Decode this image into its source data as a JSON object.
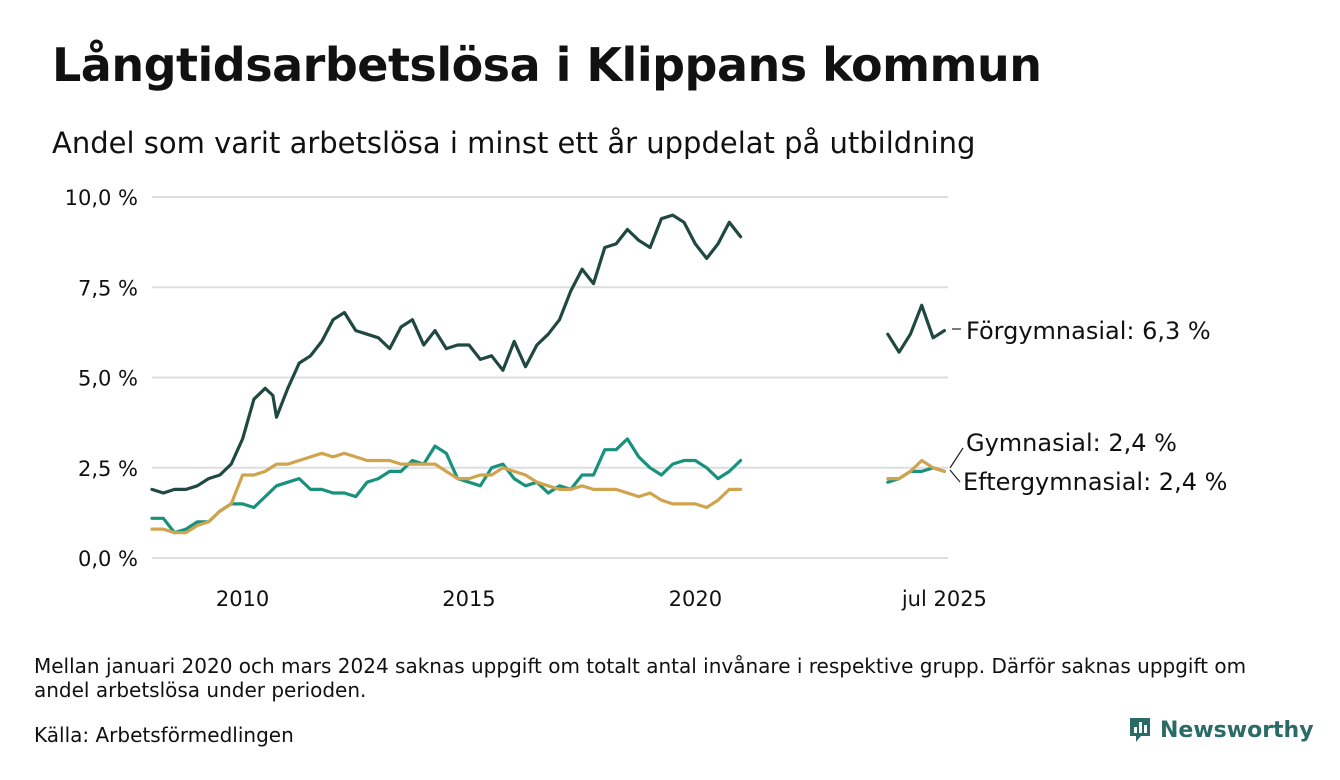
{
  "title": "Långtidsarbetslösa i Klippans kommun",
  "subtitle": "Andel som varit arbetslösa i minst ett år uppdelat på utbildning",
  "footnote": "Mellan januari 2020 och mars 2024 saknas uppgift om totalt antal invånare i respektive grupp. Därför saknas uppgift om andel arbetslösa under perioden.",
  "source": "Källa: Arbetsförmedlingen",
  "brand": {
    "name": "Newsworthy",
    "icon": "bar-chart-icon"
  },
  "chart_data": {
    "type": "line",
    "xlim": [
      2008.0,
      2025.58
    ],
    "ylim": [
      0,
      10
    ],
    "grid": true,
    "y_ticks": [
      {
        "value": 0,
        "label": "0,0 %"
      },
      {
        "value": 2.5,
        "label": "2,5 %"
      },
      {
        "value": 5,
        "label": "5,0 %"
      },
      {
        "value": 7.5,
        "label": "7,5 %"
      },
      {
        "value": 10,
        "label": "10,0 %"
      }
    ],
    "x_ticks": [
      {
        "value": 2010.0,
        "label": "2010"
      },
      {
        "value": 2015.0,
        "label": "2015"
      },
      {
        "value": 2020.0,
        "label": "2020"
      },
      {
        "value": 2025.5,
        "label": "jul 2025"
      }
    ],
    "series": [
      {
        "name": "Förgymnasial",
        "end_label": "Förgymnasial: 6,3 %",
        "color": "#1f4840",
        "segments": [
          [
            [
              2008.0,
              1.9
            ],
            [
              2008.25,
              1.8
            ],
            [
              2008.5,
              1.9
            ],
            [
              2008.75,
              1.9
            ],
            [
              2009.0,
              2.0
            ],
            [
              2009.25,
              2.2
            ],
            [
              2009.5,
              2.3
            ],
            [
              2009.75,
              2.6
            ],
            [
              2010.0,
              3.3
            ],
            [
              2010.25,
              4.4
            ],
            [
              2010.5,
              4.7
            ],
            [
              2010.67,
              4.5
            ],
            [
              2010.75,
              3.9
            ],
            [
              2011.0,
              4.7
            ],
            [
              2011.25,
              5.4
            ],
            [
              2011.5,
              5.6
            ],
            [
              2011.75,
              6.0
            ],
            [
              2012.0,
              6.6
            ],
            [
              2012.25,
              6.8
            ],
            [
              2012.5,
              6.3
            ],
            [
              2012.75,
              6.2
            ],
            [
              2013.0,
              6.1
            ],
            [
              2013.25,
              5.8
            ],
            [
              2013.5,
              6.4
            ],
            [
              2013.75,
              6.6
            ],
            [
              2014.0,
              5.9
            ],
            [
              2014.25,
              6.3
            ],
            [
              2014.5,
              5.8
            ],
            [
              2014.75,
              5.9
            ],
            [
              2015.0,
              5.9
            ],
            [
              2015.25,
              5.5
            ],
            [
              2015.5,
              5.6
            ],
            [
              2015.75,
              5.2
            ],
            [
              2016.0,
              6.0
            ],
            [
              2016.25,
              5.3
            ],
            [
              2016.5,
              5.9
            ],
            [
              2016.75,
              6.2
            ],
            [
              2017.0,
              6.6
            ],
            [
              2017.25,
              7.4
            ],
            [
              2017.5,
              8.0
            ],
            [
              2017.75,
              7.6
            ],
            [
              2018.0,
              8.6
            ],
            [
              2018.25,
              8.7
            ],
            [
              2018.5,
              9.1
            ],
            [
              2018.75,
              8.8
            ],
            [
              2019.0,
              8.6
            ],
            [
              2019.25,
              9.4
            ],
            [
              2019.5,
              9.5
            ],
            [
              2019.75,
              9.3
            ],
            [
              2020.0,
              8.7
            ],
            [
              2020.25,
              8.3
            ],
            [
              2020.5,
              8.7
            ],
            [
              2020.75,
              9.3
            ],
            [
              2021.0,
              8.9
            ]
          ],
          [
            [
              2024.25,
              6.2
            ],
            [
              2024.5,
              5.7
            ],
            [
              2024.75,
              6.2
            ],
            [
              2025.0,
              7.0
            ],
            [
              2025.25,
              6.1
            ],
            [
              2025.5,
              6.3
            ]
          ]
        ]
      },
      {
        "name": "Gymnasial",
        "end_label": "Gymnasial: 2,4 %",
        "color": "#18917d",
        "segments": [
          [
            [
              2008.0,
              1.1
            ],
            [
              2008.25,
              1.1
            ],
            [
              2008.5,
              0.7
            ],
            [
              2008.75,
              0.8
            ],
            [
              2009.0,
              1.0
            ],
            [
              2009.25,
              1.0
            ],
            [
              2009.5,
              1.3
            ],
            [
              2009.75,
              1.5
            ],
            [
              2010.0,
              1.5
            ],
            [
              2010.25,
              1.4
            ],
            [
              2010.5,
              1.7
            ],
            [
              2010.75,
              2.0
            ],
            [
              2011.0,
              2.1
            ],
            [
              2011.25,
              2.2
            ],
            [
              2011.5,
              1.9
            ],
            [
              2011.75,
              1.9
            ],
            [
              2012.0,
              1.8
            ],
            [
              2012.25,
              1.8
            ],
            [
              2012.5,
              1.7
            ],
            [
              2012.75,
              2.1
            ],
            [
              2013.0,
              2.2
            ],
            [
              2013.25,
              2.4
            ],
            [
              2013.5,
              2.4
            ],
            [
              2013.75,
              2.7
            ],
            [
              2014.0,
              2.6
            ],
            [
              2014.25,
              3.1
            ],
            [
              2014.5,
              2.9
            ],
            [
              2014.75,
              2.2
            ],
            [
              2015.0,
              2.1
            ],
            [
              2015.25,
              2.0
            ],
            [
              2015.5,
              2.5
            ],
            [
              2015.75,
              2.6
            ],
            [
              2016.0,
              2.2
            ],
            [
              2016.25,
              2.0
            ],
            [
              2016.5,
              2.1
            ],
            [
              2016.75,
              1.8
            ],
            [
              2017.0,
              2.0
            ],
            [
              2017.25,
              1.9
            ],
            [
              2017.5,
              2.3
            ],
            [
              2017.75,
              2.3
            ],
            [
              2018.0,
              3.0
            ],
            [
              2018.25,
              3.0
            ],
            [
              2018.5,
              3.3
            ],
            [
              2018.75,
              2.8
            ],
            [
              2019.0,
              2.5
            ],
            [
              2019.25,
              2.3
            ],
            [
              2019.5,
              2.6
            ],
            [
              2019.75,
              2.7
            ],
            [
              2020.0,
              2.7
            ],
            [
              2020.25,
              2.5
            ],
            [
              2020.5,
              2.2
            ],
            [
              2020.75,
              2.4
            ],
            [
              2021.0,
              2.7
            ]
          ],
          [
            [
              2024.25,
              2.1
            ],
            [
              2024.5,
              2.2
            ],
            [
              2024.75,
              2.4
            ],
            [
              2025.0,
              2.4
            ],
            [
              2025.25,
              2.5
            ],
            [
              2025.5,
              2.4
            ]
          ]
        ]
      },
      {
        "name": "Eftergymnasial",
        "end_label": "Eftergymnasial: 2,4 %",
        "color": "#d0a44e",
        "segments": [
          [
            [
              2008.0,
              0.8
            ],
            [
              2008.25,
              0.8
            ],
            [
              2008.5,
              0.7
            ],
            [
              2008.75,
              0.7
            ],
            [
              2009.0,
              0.9
            ],
            [
              2009.25,
              1.0
            ],
            [
              2009.5,
              1.3
            ],
            [
              2009.75,
              1.5
            ],
            [
              2010.0,
              2.3
            ],
            [
              2010.25,
              2.3
            ],
            [
              2010.5,
              2.4
            ],
            [
              2010.75,
              2.6
            ],
            [
              2011.0,
              2.6
            ],
            [
              2011.25,
              2.7
            ],
            [
              2011.5,
              2.8
            ],
            [
              2011.75,
              2.9
            ],
            [
              2012.0,
              2.8
            ],
            [
              2012.25,
              2.9
            ],
            [
              2012.5,
              2.8
            ],
            [
              2012.75,
              2.7
            ],
            [
              2013.0,
              2.7
            ],
            [
              2013.25,
              2.7
            ],
            [
              2013.5,
              2.6
            ],
            [
              2013.75,
              2.6
            ],
            [
              2014.0,
              2.6
            ],
            [
              2014.25,
              2.6
            ],
            [
              2014.5,
              2.4
            ],
            [
              2014.75,
              2.2
            ],
            [
              2015.0,
              2.2
            ],
            [
              2015.25,
              2.3
            ],
            [
              2015.5,
              2.3
            ],
            [
              2015.75,
              2.5
            ],
            [
              2016.0,
              2.4
            ],
            [
              2016.25,
              2.3
            ],
            [
              2016.5,
              2.1
            ],
            [
              2016.75,
              2.0
            ],
            [
              2017.0,
              1.9
            ],
            [
              2017.25,
              1.9
            ],
            [
              2017.5,
              2.0
            ],
            [
              2017.75,
              1.9
            ],
            [
              2018.0,
              1.9
            ],
            [
              2018.25,
              1.9
            ],
            [
              2018.5,
              1.8
            ],
            [
              2018.75,
              1.7
            ],
            [
              2019.0,
              1.8
            ],
            [
              2019.25,
              1.6
            ],
            [
              2019.5,
              1.5
            ],
            [
              2019.75,
              1.5
            ],
            [
              2020.0,
              1.5
            ],
            [
              2020.25,
              1.4
            ],
            [
              2020.5,
              1.6
            ],
            [
              2020.75,
              1.9
            ],
            [
              2021.0,
              1.9
            ]
          ],
          [
            [
              2024.25,
              2.2
            ],
            [
              2024.5,
              2.2
            ],
            [
              2024.75,
              2.4
            ],
            [
              2025.0,
              2.7
            ],
            [
              2025.25,
              2.5
            ],
            [
              2025.5,
              2.4
            ]
          ]
        ]
      }
    ]
  }
}
